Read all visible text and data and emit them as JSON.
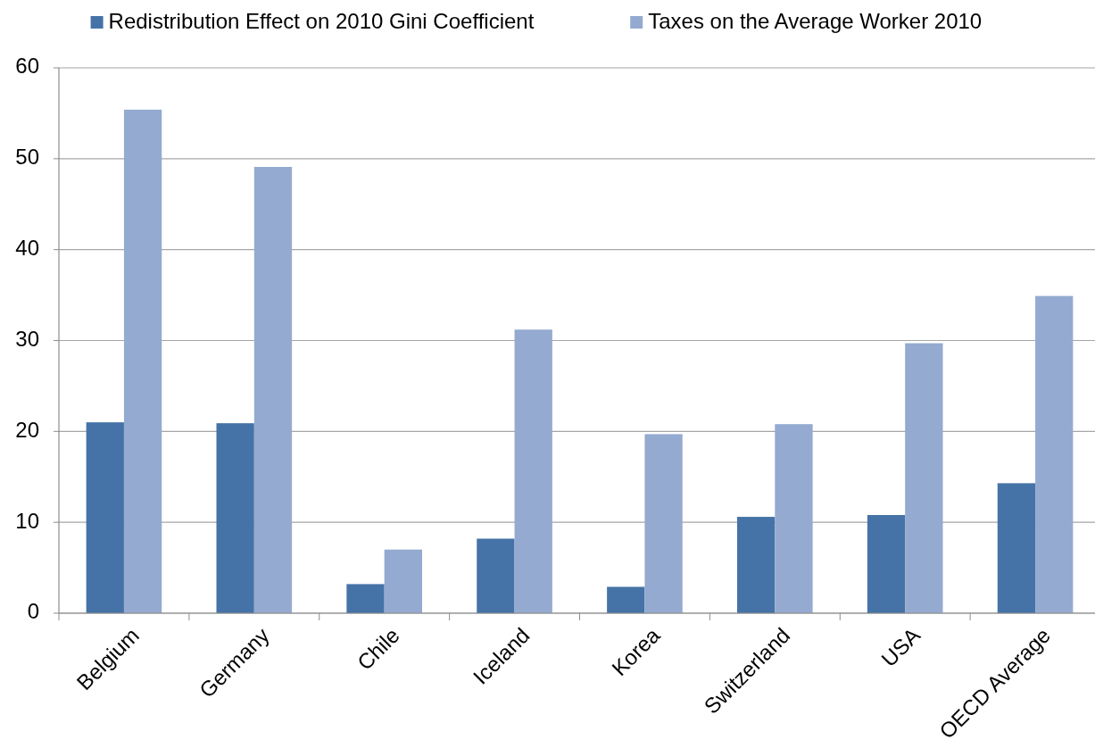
{
  "chart_data": {
    "type": "bar",
    "categories": [
      "Belgium",
      "Germany",
      "Chile",
      "Iceland",
      "Korea",
      "Switzerland",
      "USA",
      "OECD Average"
    ],
    "series": [
      {
        "name": "Redistribution Effect on 2010 Gini Coefficient",
        "color": "#4573a7",
        "values": [
          21.0,
          20.9,
          3.2,
          8.2,
          2.9,
          10.6,
          10.8,
          14.3
        ]
      },
      {
        "name": "Taxes on the Average Worker 2010",
        "color": "#95aad0",
        "values": [
          55.4,
          49.1,
          7.0,
          31.2,
          19.7,
          20.8,
          29.7,
          34.9
        ]
      }
    ],
    "ylim": [
      0,
      60
    ],
    "yticks": [
      0,
      10,
      20,
      30,
      40,
      50,
      60
    ],
    "grid": "y",
    "legend": "top"
  }
}
